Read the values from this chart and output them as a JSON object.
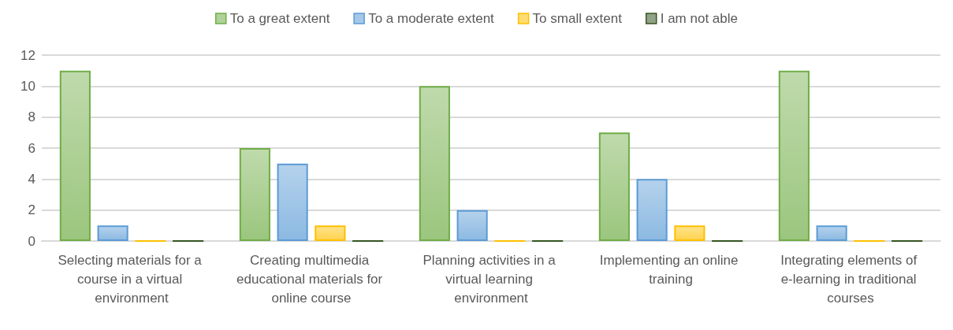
{
  "chart_data": {
    "type": "bar",
    "categories": [
      "Selecting materials for a course in a virtual environment",
      "Creating multimedia educational materials for online course",
      "Planning activities in a virtual learning environment",
      "Implementing an online training",
      "Integrating elements of e-learning in traditional courses"
    ],
    "series": [
      {
        "name": "To a great extent",
        "color": "#70ad47",
        "values": [
          11,
          6,
          10,
          7,
          11
        ]
      },
      {
        "name": "To a moderate extent",
        "color": "#5b9bd5",
        "values": [
          1,
          5,
          2,
          4,
          1
        ]
      },
      {
        "name": "To small extent",
        "color": "#ffc000",
        "values": [
          0,
          1,
          0,
          1,
          0
        ]
      },
      {
        "name": "I am not able",
        "color": "#375623",
        "values": [
          0,
          0,
          0,
          0,
          0
        ]
      }
    ],
    "ylim": [
      0,
      12
    ],
    "yticks": [
      0,
      2,
      4,
      6,
      8,
      10,
      12
    ],
    "grid": "y",
    "legend": "top"
  }
}
